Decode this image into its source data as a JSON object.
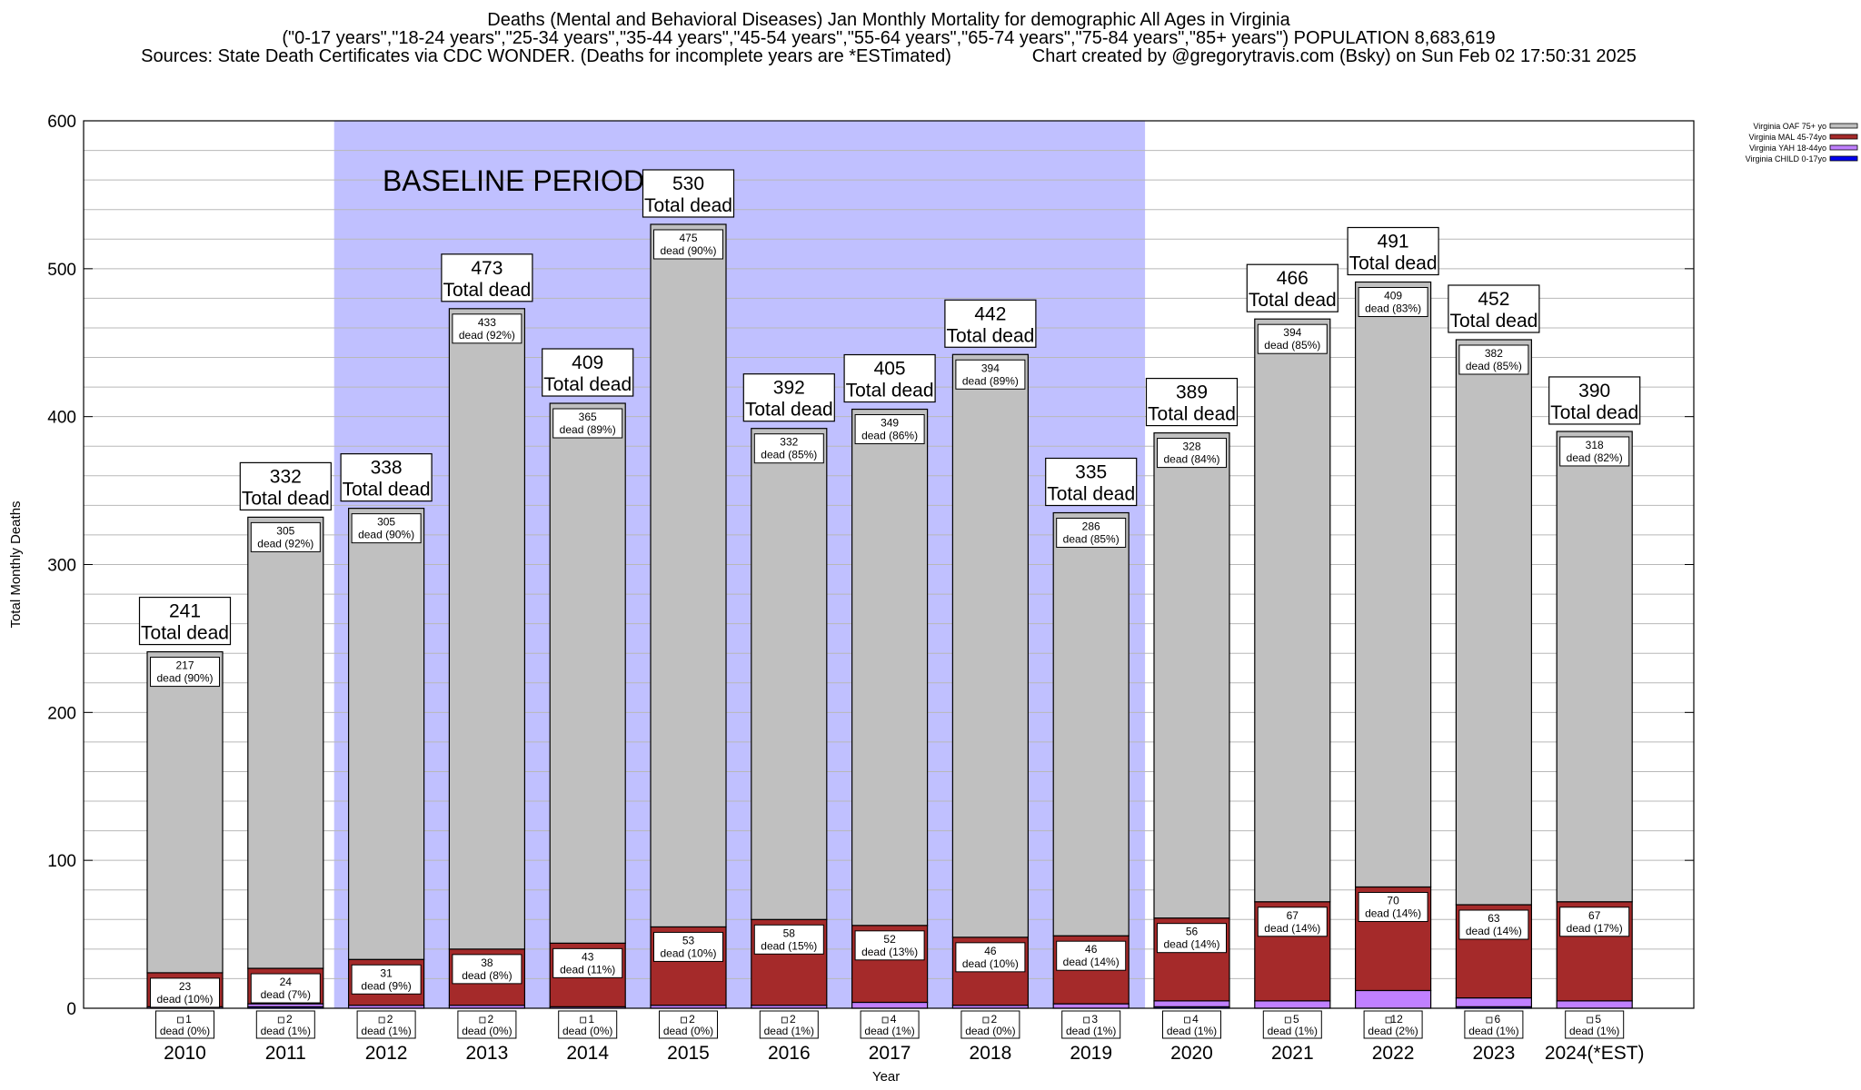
{
  "titles": {
    "line1": "Deaths (Mental and Behavioral Diseases) Jan Monthly Mortality for demographic All Ages in Virginia",
    "line2": "(\"0-17 years\",\"18-24 years\",\"25-34 years\",\"35-44 years\",\"45-54 years\",\"55-64 years\",\"65-74 years\",\"75-84 years\",\"85+ years\") POPULATION 8,683,619",
    "line3": "Sources: State Death Certificates via CDC WONDER. (Deaths for incomplete years are *ESTimated)                Chart created by @gregorytravis.com (Bsky) on Sun Feb 02 17:50:31 2025"
  },
  "chart_data": {
    "type": "bar",
    "stacked": true,
    "xlabel": "Year",
    "ylabel": "Total Monthly Deaths",
    "ylim": [
      0,
      600
    ],
    "yticks": [
      0,
      100,
      200,
      300,
      400,
      500,
      600
    ],
    "grid": true,
    "legend_placement": "top-right",
    "annotation": "BASELINE PERIOD",
    "baseline_period": [
      "2012",
      "2019"
    ],
    "baseline_color": "#c0c0ff",
    "total_label_suffix": "Total dead",
    "segment_label_word": "dead",
    "categories": [
      "2010",
      "2011",
      "2012",
      "2013",
      "2014",
      "2015",
      "2016",
      "2017",
      "2018",
      "2019",
      "2020",
      "2021",
      "2022",
      "2023",
      "2024(*EST)"
    ],
    "totals": [
      241,
      332,
      338,
      473,
      409,
      530,
      392,
      405,
      442,
      335,
      389,
      466,
      491,
      452,
      390
    ],
    "series": [
      {
        "name": "Virginia CHILD 0-17yo",
        "color": "#0000ee",
        "values": [
          0,
          1,
          0,
          0,
          0,
          0,
          0,
          0,
          0,
          0,
          1,
          0,
          0,
          1,
          0
        ]
      },
      {
        "name": "Virginia YAH 18-44yo",
        "color": "#c080ff",
        "values": [
          1,
          2,
          2,
          2,
          1,
          2,
          2,
          4,
          2,
          3,
          4,
          5,
          12,
          6,
          5
        ],
        "pct": [
          "0%",
          "1%",
          "1%",
          "0%",
          "0%",
          "0%",
          "1%",
          "1%",
          "0%",
          "1%",
          "1%",
          "1%",
          "2%",
          "1%",
          "1%"
        ]
      },
      {
        "name": "Virginia MAL 45-74yo",
        "color": "#a52a2a",
        "values": [
          23,
          24,
          31,
          38,
          43,
          53,
          58,
          52,
          46,
          46,
          56,
          67,
          70,
          63,
          67
        ],
        "pct": [
          "10%",
          "7%",
          "9%",
          "8%",
          "11%",
          "10%",
          "15%",
          "13%",
          "10%",
          "14%",
          "14%",
          "14%",
          "14%",
          "14%",
          "17%"
        ]
      },
      {
        "name": "Virginia OAF 75+ yo",
        "color": "#c0c0c0",
        "values": [
          217,
          305,
          305,
          433,
          365,
          475,
          332,
          349,
          394,
          286,
          328,
          394,
          409,
          382,
          318
        ],
        "pct": [
          "90%",
          "92%",
          "90%",
          "92%",
          "89%",
          "90%",
          "85%",
          "86%",
          "89%",
          "85%",
          "84%",
          "85%",
          "83%",
          "85%",
          "82%"
        ]
      }
    ]
  }
}
